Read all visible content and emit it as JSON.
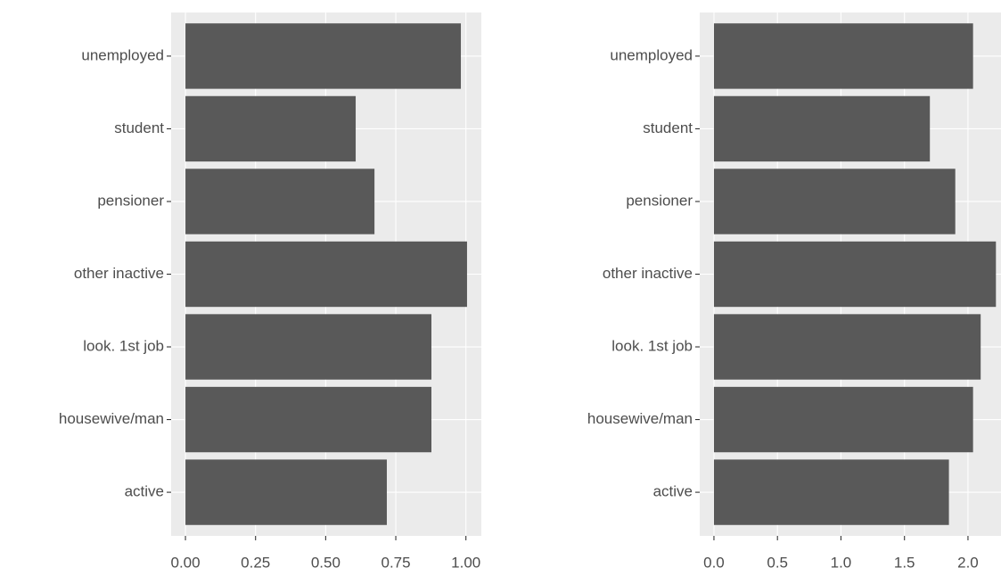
{
  "chart_data": [
    {
      "type": "bar",
      "orientation": "horizontal",
      "categories": [
        "active",
        "housewive/man",
        "look. 1st job",
        "other inactive",
        "pensioner",
        "student",
        "unemployed"
      ],
      "values": [
        0.718,
        0.877,
        0.877,
        1.004,
        0.674,
        0.607,
        0.982
      ],
      "color": "#595959",
      "xlim": [
        -0.051,
        1.055
      ],
      "xticks": [
        {
          "value": 0,
          "label": "0.00"
        },
        {
          "value": 0.25,
          "label": "0.25"
        },
        {
          "value": 0.5,
          "label": "0.50"
        },
        {
          "value": 0.75,
          "label": "0.75"
        },
        {
          "value": 1,
          "label": "1.00"
        }
      ],
      "grid": true
    },
    {
      "type": "bar",
      "orientation": "horizontal",
      "categories": [
        "active",
        "housewive/man",
        "look. 1st job",
        "other inactive",
        "pensioner",
        "student",
        "unemployed"
      ],
      "values": [
        1.85,
        2.04,
        2.1,
        2.22,
        1.9,
        1.7,
        2.04
      ],
      "color": "#595959",
      "xlim": [
        -0.112,
        2.26
      ],
      "xticks": [
        {
          "value": 0,
          "label": "0.0"
        },
        {
          "value": 0.5,
          "label": "0.5"
        },
        {
          "value": 1,
          "label": "1.0"
        },
        {
          "value": 1.5,
          "label": "1.5"
        },
        {
          "value": 2,
          "label": "2.0"
        }
      ],
      "grid": true
    }
  ]
}
